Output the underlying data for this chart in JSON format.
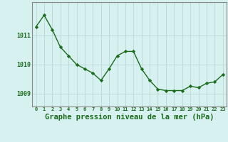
{
  "hours": [
    0,
    1,
    2,
    3,
    4,
    5,
    6,
    7,
    8,
    9,
    10,
    11,
    12,
    13,
    14,
    15,
    16,
    17,
    18,
    19,
    20,
    21,
    22,
    23
  ],
  "pressure": [
    1011.3,
    1011.7,
    1011.2,
    1010.6,
    1010.3,
    1010.0,
    1009.85,
    1009.7,
    1009.45,
    1009.85,
    1010.3,
    1010.45,
    1010.45,
    1009.85,
    1009.45,
    1009.15,
    1009.1,
    1009.1,
    1009.1,
    1009.25,
    1009.2,
    1009.35,
    1009.4,
    1009.65
  ],
  "line_color": "#1a6b1a",
  "marker": "D",
  "marker_size": 2.2,
  "bg_color": "#d7f0f0",
  "plot_bg_color": "#d7f0f0",
  "grid_color": "#b8d8d8",
  "axis_color": "#888888",
  "xlabel": "Graphe pression niveau de la mer (hPa)",
  "xlabel_color": "#1a6b1a",
  "xlabel_fontsize": 7.5,
  "ytick_fontsize": 6,
  "xtick_fontsize": 5,
  "yticks": [
    1009,
    1010,
    1011
  ],
  "ylim": [
    1008.55,
    1012.15
  ],
  "xlim": [
    -0.5,
    23.5
  ]
}
